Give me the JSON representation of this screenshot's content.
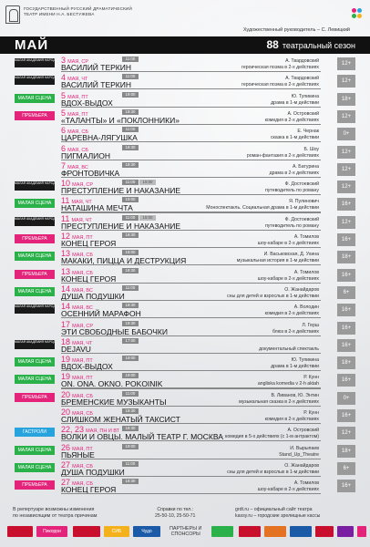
{
  "header": {
    "theatre_line1": "Государственный русский драматический",
    "theatre_line2": "театр имени Н.А. Бестужева",
    "director": "Художественный руководитель – С. Левицкий",
    "month": "МАЙ",
    "season_number": "88",
    "season_label": "театральный сезон"
  },
  "colors": {
    "accent": "#e4237a",
    "small_stage": "#2bb14a",
    "premiere": "#e4237a",
    "tour": "#27a3dd",
    "honored_artists": "#1a1a1a"
  },
  "rows": [
    {
      "tag": "black",
      "tag_text": "Малая академия народного искусства",
      "day": "3",
      "rest": "мая, ср",
      "title": "Василий Теркин",
      "times": [
        "11:00"
      ],
      "author": "А. Твардовский",
      "genre": "героическая поэма в 2-х действиях",
      "age": "12+"
    },
    {
      "tag": "black",
      "tag_text": "Малая академия народного искусства",
      "day": "4",
      "rest": "мая, чт",
      "title": "Василий Теркин",
      "times": [
        "11:00"
      ],
      "author": "А. Твардовский",
      "genre": "героическая поэма в 2-х действиях",
      "age": "12+"
    },
    {
      "tag": "green",
      "tag_text": "Малая сцена",
      "day": "5",
      "rest": "мая, пт",
      "title": "Вдох-выдох",
      "times": [
        "19:00"
      ],
      "author": "Ю. Тупикина",
      "genre": "драма в 1-м действии",
      "age": "18+"
    },
    {
      "tag": "pink",
      "tag_text": "Премьера",
      "day": "5",
      "rest": "мая, пт",
      "title": "«Таланты» и «Поклонники»",
      "times": [
        "18:30"
      ],
      "author": "А. Островский",
      "genre": "комедия в 2-х действиях",
      "age": "12+"
    },
    {
      "tag": "",
      "tag_text": "",
      "day": "6",
      "rest": "мая, сб",
      "title": "Царевна-лягушка",
      "times": [
        "11:00"
      ],
      "author": "Е. Чернак",
      "genre": "сказка в 1-м действии",
      "age": "0+"
    },
    {
      "tag": "",
      "tag_text": "",
      "day": "6",
      "rest": "мая, сб",
      "title": "Пигмалион",
      "times": [
        "18:30"
      ],
      "author": "Б. Шоу",
      "genre": "роман-фантазия в 2-х действиях",
      "age": "12+"
    },
    {
      "tag": "",
      "tag_text": "",
      "day": "7",
      "rest": "мая, вс",
      "title": "Фронтовичка",
      "times": [
        "18:30"
      ],
      "author": "А. Батурина",
      "genre": "драма в 2-х действиях",
      "age": "12+"
    },
    {
      "tag": "black",
      "tag_text": "Малая академия народного искусства",
      "day": "10",
      "rest": "мая, ср",
      "title": "Преступление и наказание",
      "times": [
        "11:00",
        "15:00"
      ],
      "author": "Ф. Достоевский",
      "genre": "путеводитель по роману",
      "age": "12+"
    },
    {
      "tag": "green",
      "tag_text": "Малая сцена",
      "day": "11",
      "rest": "мая, чт",
      "title": "Наташина мечта",
      "times": [
        "19:00"
      ],
      "author": "Я. Пулинович",
      "genre": "Моноспектакль. Социальная драма в 1-м действии",
      "age": "16+"
    },
    {
      "tag": "black",
      "tag_text": "Малая академия народного искусства",
      "day": "11",
      "rest": "мая, чт",
      "title": "Преступление и наказание",
      "times": [
        "11:00",
        "15:00"
      ],
      "author": "Ф. Достоевский",
      "genre": "путеводитель по роману",
      "age": "12+"
    },
    {
      "tag": "pink",
      "tag_text": "Премьера",
      "day": "12",
      "rest": "мая, пт",
      "title": "Конец героя",
      "times": [
        "18:30"
      ],
      "author": "А. Томилов",
      "genre": "шоу-кабаре в 2-х действиях",
      "age": "16+"
    },
    {
      "tag": "green",
      "tag_text": "Малая сцена",
      "day": "13",
      "rest": "мая, сб",
      "title": "Макаки, пицца и деструкция",
      "times": [
        "18:00"
      ],
      "author": "И. Васьковская, Д. Ухина",
      "genre": "музыкальная история в 1-м действии",
      "age": "18+"
    },
    {
      "tag": "pink",
      "tag_text": "Премьера",
      "day": "13",
      "rest": "мая, сб",
      "title": "Конец героя",
      "times": [
        "18:30"
      ],
      "author": "А. Томилов",
      "genre": "шоу-кабаре в 2-х действиях",
      "age": "16+"
    },
    {
      "tag": "green",
      "tag_text": "Малая сцена",
      "day": "14",
      "rest": "мая, вс",
      "title": "Душа подушки",
      "times": [
        "11:00"
      ],
      "author": "О. Жанайдаров",
      "genre": "сны для детей и взрослых в 1-м действии",
      "age": "6+"
    },
    {
      "tag": "black",
      "tag_text": "Малая академия народного искусства",
      "day": "14",
      "rest": "мая, вс",
      "title": "Осенний марафон",
      "times": [
        "18:30"
      ],
      "author": "А. Володин",
      "genre": "комедия в 2-х действиях",
      "age": "16+"
    },
    {
      "tag": "",
      "tag_text": "",
      "day": "17",
      "rest": "мая, ср",
      "title": "Эти свободные бабочки",
      "times": [
        "18:30"
      ],
      "author": "Л. Герш",
      "genre": "блюз в 2-х действиях",
      "age": "16+"
    },
    {
      "tag": "black",
      "tag_text": "Малая академия народного искусства",
      "day": "18",
      "rest": "мая, чт",
      "title": "Dejavu",
      "times": [
        "17:00"
      ],
      "author": "",
      "genre": "документальный спектакль",
      "age": "16+"
    },
    {
      "tag": "green",
      "tag_text": "Малая сцена",
      "day": "19",
      "rest": "мая, пт",
      "title": "Вдох-выдох",
      "times": [
        "19:00"
      ],
      "author": "Ю. Тупикина",
      "genre": "драма в 1-м действии",
      "age": "18+"
    },
    {
      "tag": "green",
      "tag_text": "Малая сцена",
      "day": "19",
      "rest": "мая, пт",
      "title": "ON. ONA. OKNO. POKOINIK",
      "times": [
        "19:00"
      ],
      "author": "Р. Кунн",
      "genre": "angliska komedia v 2-h aktah",
      "age": "16+"
    },
    {
      "tag": "pink",
      "tag_text": "Премьера",
      "day": "20",
      "rest": "мая, сб",
      "title": "Бременские музыканты",
      "times": [
        "11:00"
      ],
      "author": "В. Ливанов, Ю. Энтин",
      "genre": "музыкальная сказка в 2-х действиях",
      "age": "0+"
    },
    {
      "tag": "",
      "tag_text": "",
      "day": "20",
      "rest": "мая, сб",
      "title": "Слишком женатый таксист",
      "times": [
        "18:30"
      ],
      "author": "Р. Кунн",
      "genre": "комедия в 2-х действиях",
      "age": "16+"
    },
    {
      "tag": "blue",
      "tag_text": "Гастроли",
      "day": "22, 23",
      "rest": "мая, пн и вт",
      "title": "Волки и овцы. Малый театр г. Москва",
      "times": [
        "18:30"
      ],
      "author": "А. Островский",
      "genre": "комедия в 5-х действиях (с 1-м антрактом)",
      "age": "12+"
    },
    {
      "tag": "green",
      "tag_text": "Малая сцена",
      "day": "26",
      "rest": "мая, пт",
      "title": "Пьяные",
      "times": [
        "19:00"
      ],
      "author": "И. Вырыпаев",
      "genre": "Stand_Up_Theatre",
      "age": "18+"
    },
    {
      "tag": "green",
      "tag_text": "Малая сцена",
      "day": "27",
      "rest": "мая, сб",
      "title": "Душа подушки",
      "times": [
        "11:00"
      ],
      "author": "О. Жанайдаров",
      "genre": "сны для детей и взрослых в 1-м действии",
      "age": "6+"
    },
    {
      "tag": "pink",
      "tag_text": "Премьера",
      "day": "27",
      "rest": "мая, сб",
      "title": "Конец героя",
      "times": [
        "18:30"
      ],
      "author": "А. Томилов",
      "genre": "шоу-кабаре в 2-х действиях",
      "age": "16+"
    }
  ],
  "footer": {
    "footnote_line1": "В репертуаре возможны изменения",
    "footnote_line2": "по независящим от театра причинам",
    "phones_label": "Справки по тел.:",
    "phones": "25-50-10, 25-50-71",
    "site_line1": "grdt.ru – официальный сайт театра",
    "site_line2": "kassy.ru – городские зрелищные кассы",
    "partners_label_1": "ПАРТНЕРЫ И",
    "partners_label_2": "СПОНСОРЫ",
    "partners": [
      "",
      "Пикорри",
      "",
      "СИБ",
      "Чудо",
      "",
      "",
      "",
      "",
      "",
      "",
      ""
    ]
  }
}
